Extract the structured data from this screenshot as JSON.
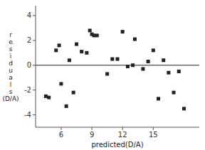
{
  "chart_data": {
    "type": "scatter",
    "x": [
      4.5,
      4.8,
      5.5,
      5.8,
      6.0,
      6.5,
      6.8,
      7.2,
      7.5,
      8.0,
      8.5,
      8.8,
      9.0,
      9.2,
      9.5,
      10.5,
      11.0,
      11.5,
      12.0,
      12.5,
      13.0,
      13.2,
      14.0,
      14.5,
      15.0,
      15.5,
      16.0,
      16.5,
      17.0,
      17.5,
      18.0
    ],
    "values": [
      -2.5,
      -2.6,
      1.2,
      1.6,
      -1.5,
      -3.3,
      0.4,
      -2.2,
      1.7,
      1.1,
      1.0,
      2.8,
      2.5,
      2.4,
      2.4,
      -0.7,
      0.5,
      0.5,
      2.7,
      -0.1,
      0.0,
      2.1,
      -0.3,
      0.3,
      1.2,
      -2.7,
      0.4,
      -0.6,
      -2.2,
      -0.5,
      -3.5
    ],
    "xlim": [
      3.5,
      19.5
    ],
    "ylim": [
      -5,
      4.8
    ],
    "xticks": [
      6,
      9,
      12,
      15
    ],
    "yticks": [
      -4,
      -2,
      0,
      2,
      4
    ],
    "xlabel": "predicted(D/A)",
    "ylabel": [
      "r",
      "e",
      "s",
      "i",
      "d",
      "u",
      "a",
      "l",
      "s",
      "(D/A)"
    ],
    "hline": 0,
    "marker": "square",
    "color": "#222222"
  }
}
